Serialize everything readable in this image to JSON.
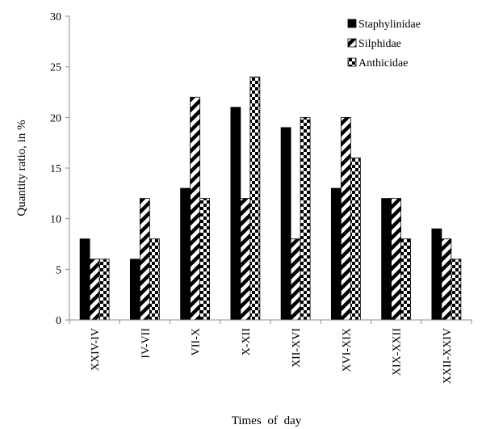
{
  "chart_data": {
    "type": "bar",
    "xlabel": "Times of day",
    "ylabel": "Quantity ratio, in %",
    "ylim": [
      0,
      30
    ],
    "y_ticks": [
      0,
      5,
      10,
      15,
      20,
      25,
      30
    ],
    "grid": false,
    "legend_position": "top-right",
    "categories": [
      "XXIV-IV",
      "IV-VII",
      "VII-X",
      "X-XII",
      "XII-XVI",
      "XVI-XIX",
      "XIX-XXII",
      "XXII-XXIV"
    ],
    "series": [
      {
        "name": "Staphylinidae",
        "pattern": "solid",
        "color": "#000000",
        "values": [
          8,
          6,
          13,
          21,
          19,
          13,
          12,
          9
        ]
      },
      {
        "name": "Silphidae",
        "pattern": "diagonal-stripes",
        "color": "#000000",
        "values": [
          6,
          12,
          22,
          12,
          8,
          20,
          12,
          8
        ]
      },
      {
        "name": "Anthicidae",
        "pattern": "checkerboard",
        "color": "#000000",
        "values": [
          6,
          8,
          12,
          24,
          20,
          16,
          8,
          6
        ]
      }
    ]
  }
}
